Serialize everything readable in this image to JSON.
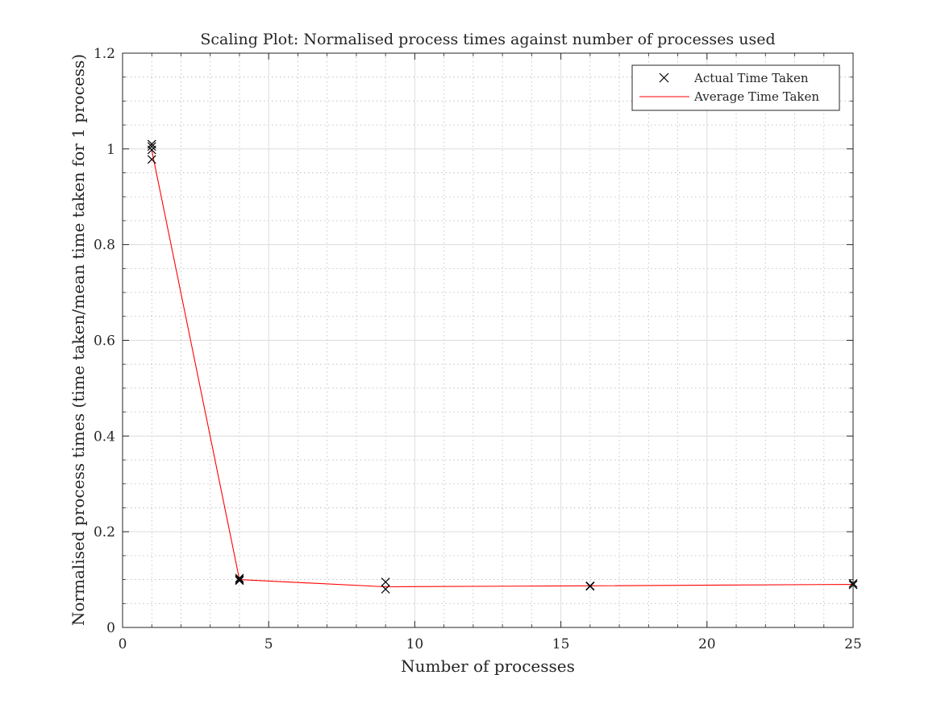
{
  "chart_data": {
    "type": "line",
    "title": "Scaling Plot: Normalised process times against number of processes used",
    "xlabel": "Number of processes",
    "ylabel": "Normalised process times (time taken/mean time taken for 1 process)",
    "xlim": [
      0,
      25
    ],
    "ylim": [
      0,
      1.2
    ],
    "x_ticks": [
      0,
      5,
      10,
      15,
      20,
      25
    ],
    "x_tick_labels": [
      "0",
      "5",
      "10",
      "15",
      "20",
      "25"
    ],
    "y_ticks": [
      0,
      0.2,
      0.4,
      0.6,
      0.8,
      1.0,
      1.2
    ],
    "y_tick_labels": [
      "0",
      "0.2",
      "0.4",
      "0.6",
      "0.8",
      "1",
      "1.2"
    ],
    "grid": true,
    "minor_grid": true,
    "legend_position": "top-right",
    "series": [
      {
        "name": "Actual Time Taken",
        "kind": "scatter",
        "marker": "x",
        "color": "#000000",
        "points": [
          {
            "x": 1,
            "y": 1.01
          },
          {
            "x": 1,
            "y": 1.005
          },
          {
            "x": 1,
            "y": 0.998
          },
          {
            "x": 1,
            "y": 0.978
          },
          {
            "x": 4,
            "y": 0.103
          },
          {
            "x": 4,
            "y": 0.1
          },
          {
            "x": 4,
            "y": 0.098
          },
          {
            "x": 9,
            "y": 0.095
          },
          {
            "x": 9,
            "y": 0.08
          },
          {
            "x": 16,
            "y": 0.087
          },
          {
            "x": 16,
            "y": 0.086
          },
          {
            "x": 25,
            "y": 0.092
          },
          {
            "x": 25,
            "y": 0.089
          }
        ]
      },
      {
        "name": "Average Time Taken",
        "kind": "line",
        "color": "#ff0000",
        "points": [
          {
            "x": 1,
            "y": 0.997
          },
          {
            "x": 4,
            "y": 0.1
          },
          {
            "x": 9,
            "y": 0.085
          },
          {
            "x": 16,
            "y": 0.087
          },
          {
            "x": 25,
            "y": 0.09
          }
        ]
      }
    ]
  }
}
